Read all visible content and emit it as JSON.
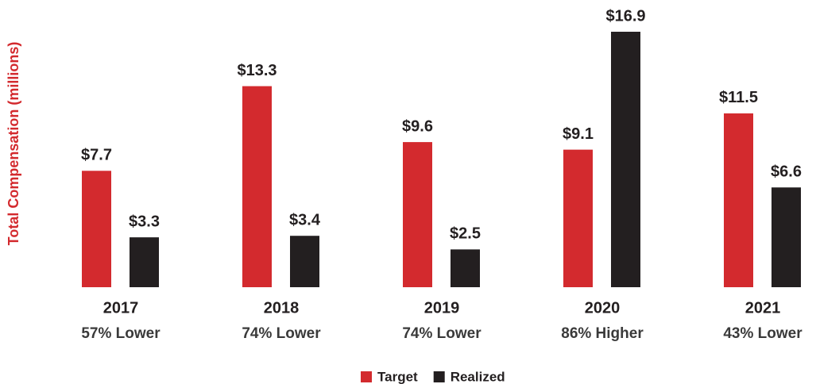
{
  "chart_data": {
    "type": "bar",
    "y_label": "Total Compensation (millions)",
    "categories": [
      "2017",
      "2018",
      "2019",
      "2020",
      "2021"
    ],
    "category_notes": [
      "57% Lower",
      "74% Lower",
      "74% Lower",
      "86% Higher",
      "43% Lower"
    ],
    "series": [
      {
        "name": "Target",
        "color": "#d32a2e",
        "values": [
          7.7,
          13.3,
          9.6,
          9.1,
          11.5
        ],
        "value_labels": [
          "$7.7",
          "$13.3",
          "$9.6",
          "$9.1",
          "$11.5"
        ]
      },
      {
        "name": "Realized",
        "color": "#231f20",
        "values": [
          3.3,
          3.4,
          2.5,
          16.9,
          6.6
        ],
        "value_labels": [
          "$3.3",
          "$3.4",
          "$2.5",
          "$16.9",
          "$6.6"
        ]
      }
    ],
    "ylim": [
      0,
      19
    ],
    "legend": "bottom"
  }
}
